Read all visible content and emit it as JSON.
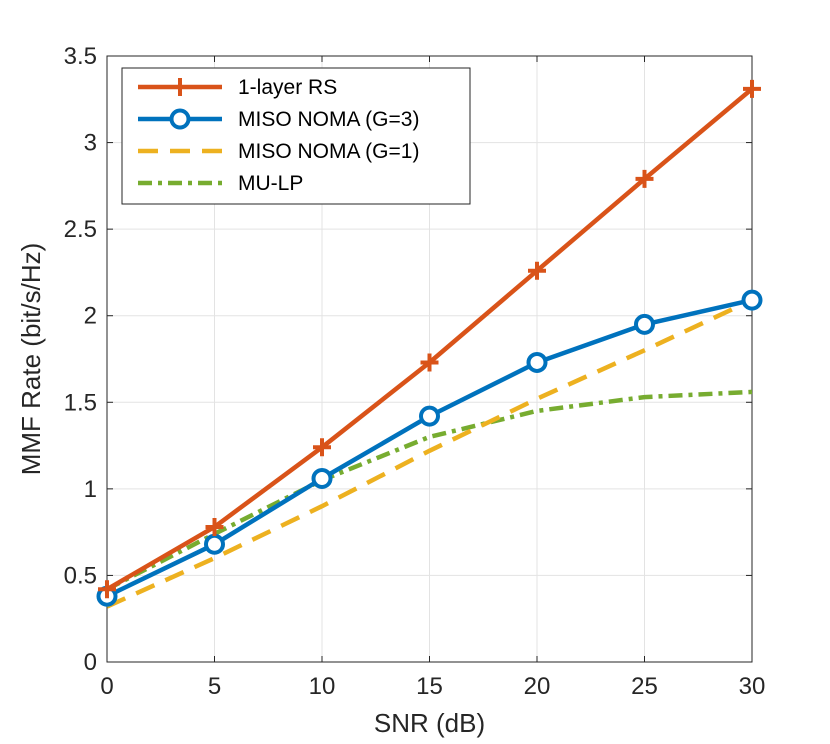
{
  "chart_data": {
    "type": "line",
    "title": "",
    "xlabel": "SNR (dB)",
    "ylabel": "MMF Rate (bit/s/Hz)",
    "xlim": [
      0,
      30
    ],
    "ylim": [
      0,
      3.5
    ],
    "xticks": [
      0,
      5,
      10,
      15,
      20,
      25,
      30
    ],
    "yticks": [
      0,
      0.5,
      1,
      1.5,
      2,
      2.5,
      3,
      3.5
    ],
    "xtick_labels": [
      "0",
      "5",
      "10",
      "15",
      "20",
      "25",
      "30"
    ],
    "ytick_labels": [
      "0",
      "0.5",
      "1",
      "1.5",
      "2",
      "2.5",
      "3",
      "3.5"
    ],
    "grid": true,
    "legend_position": "top-left",
    "x": [
      0,
      5,
      10,
      15,
      20,
      25,
      30
    ],
    "series": [
      {
        "name": "1-layer RS",
        "values": [
          0.42,
          0.78,
          1.24,
          1.73,
          2.26,
          2.79,
          3.31
        ],
        "color": "#D95319",
        "style": "solid",
        "marker": "plus"
      },
      {
        "name": "MISO NOMA (G=3)",
        "values": [
          0.38,
          0.68,
          1.06,
          1.42,
          1.73,
          1.95,
          2.09
        ],
        "color": "#0072BD",
        "style": "solid",
        "marker": "circle"
      },
      {
        "name": "MISO NOMA (G=1)",
        "values": [
          0.32,
          0.6,
          0.9,
          1.22,
          1.52,
          1.8,
          2.09
        ],
        "color": "#EDB120",
        "style": "dashed",
        "marker": "none"
      },
      {
        "name": "MU-LP",
        "values": [
          0.42,
          0.74,
          1.05,
          1.3,
          1.45,
          1.53,
          1.56
        ],
        "color": "#77AC30",
        "style": "dashdot",
        "marker": "none"
      }
    ]
  }
}
